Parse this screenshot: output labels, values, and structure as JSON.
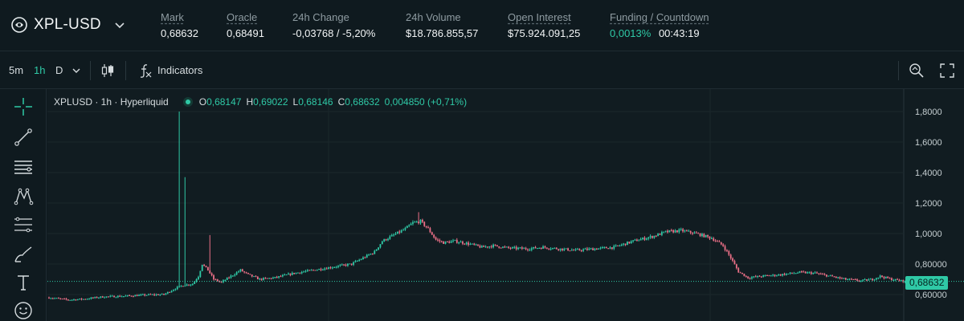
{
  "market": {
    "name": "XPL-USD"
  },
  "stats": [
    {
      "label": "Mark",
      "value": "0,68632",
      "tone": ""
    },
    {
      "label": "Oracle",
      "value": "0,68491",
      "tone": ""
    },
    {
      "label": "24h Change",
      "value": "-0,03768 / -5,20%",
      "tone": "neg"
    },
    {
      "label": "24h Volume",
      "value": "$18.786.855,57",
      "tone": ""
    },
    {
      "label": "Open Interest",
      "value": "$75.924.091,25",
      "tone": ""
    },
    {
      "label": "Funding / Countdown",
      "funding": "0,0013%",
      "countdown": "00:43:19"
    }
  ],
  "toolbar": {
    "intervals": [
      "5m",
      "1h",
      "D"
    ],
    "active_interval": "1h",
    "indicators_label": "Indicators",
    "icons": [
      "chevron-down-icon",
      "candle-type-icon",
      "function-icon",
      "search-zoom-icon",
      "fullscreen-icon"
    ]
  },
  "drawing_tools": [
    "crosshair-icon",
    "trend-line-icon",
    "horizontal-lines-icon",
    "pattern-icon",
    "fib-icon",
    "brush-icon",
    "text-icon",
    "emoji-icon"
  ],
  "legend": {
    "symbol": "XPLUSD · 1h · Hyperliquid",
    "o_label": "O",
    "o": "0,68147",
    "h_label": "H",
    "h": "0,69022",
    "l_label": "L",
    "l": "0,68146",
    "c_label": "C",
    "c": "0,68632",
    "change": "0,004850 (+0,71%)"
  },
  "colors": {
    "up": "#2fc9a6",
    "down": "#ed7088",
    "background": "#0f1a1f"
  },
  "chart_data": {
    "type": "candlestick",
    "y_ticks": [
      "1,8000",
      "1,6000",
      "1,4000",
      "1,2000",
      "1,0000",
      "0,80000",
      "0,60000"
    ],
    "y_tick_values": [
      1.8,
      1.6,
      1.4,
      1.2,
      1.0,
      0.8,
      0.6
    ],
    "ylim": [
      0.55,
      1.85
    ],
    "last_price": 0.68632,
    "last_price_label": "0,68632",
    "grid": true,
    "close_path": [
      [
        0,
        0.58
      ],
      [
        10,
        0.565
      ],
      [
        18,
        0.57
      ],
      [
        28,
        0.585
      ],
      [
        40,
        0.59
      ],
      [
        52,
        0.598
      ],
      [
        60,
        0.6
      ],
      [
        66,
        0.64
      ],
      [
        70,
        0.66
      ],
      [
        75,
        0.67
      ],
      [
        78,
        0.72
      ],
      [
        80,
        0.8
      ],
      [
        83,
        0.76
      ],
      [
        86,
        0.7
      ],
      [
        90,
        0.68
      ],
      [
        95,
        0.72
      ],
      [
        100,
        0.76
      ],
      [
        104,
        0.73
      ],
      [
        110,
        0.7
      ],
      [
        118,
        0.71
      ],
      [
        128,
        0.74
      ],
      [
        138,
        0.76
      ],
      [
        148,
        0.78
      ],
      [
        158,
        0.8
      ],
      [
        164,
        0.84
      ],
      [
        170,
        0.88
      ],
      [
        174,
        0.95
      ],
      [
        180,
        0.99
      ],
      [
        186,
        1.03
      ],
      [
        190,
        1.07
      ],
      [
        194,
        1.08
      ],
      [
        198,
        1.03
      ],
      [
        202,
        0.96
      ],
      [
        206,
        0.94
      ],
      [
        212,
        0.95
      ],
      [
        220,
        0.93
      ],
      [
        226,
        0.91
      ],
      [
        232,
        0.92
      ],
      [
        240,
        0.905
      ],
      [
        250,
        0.9
      ],
      [
        258,
        0.91
      ],
      [
        266,
        0.9
      ],
      [
        275,
        0.89
      ],
      [
        285,
        0.9
      ],
      [
        295,
        0.91
      ],
      [
        305,
        0.95
      ],
      [
        315,
        0.98
      ],
      [
        322,
        1.01
      ],
      [
        330,
        1.02
      ],
      [
        338,
        1.0
      ],
      [
        346,
        0.97
      ],
      [
        352,
        0.92
      ],
      [
        356,
        0.84
      ],
      [
        360,
        0.75
      ],
      [
        365,
        0.71
      ],
      [
        372,
        0.72
      ],
      [
        382,
        0.73
      ],
      [
        392,
        0.745
      ],
      [
        400,
        0.74
      ],
      [
        408,
        0.72
      ],
      [
        416,
        0.7
      ],
      [
        424,
        0.69
      ],
      [
        430,
        0.7
      ],
      [
        434,
        0.72
      ],
      [
        440,
        0.7
      ],
      [
        447,
        0.686
      ]
    ],
    "spikes": [
      {
        "candle": 68,
        "high": 1.8
      },
      {
        "candle": 71,
        "high": 1.37
      },
      {
        "candle": 84,
        "high": 0.99
      },
      {
        "candle": 193,
        "high": 1.14
      }
    ]
  }
}
